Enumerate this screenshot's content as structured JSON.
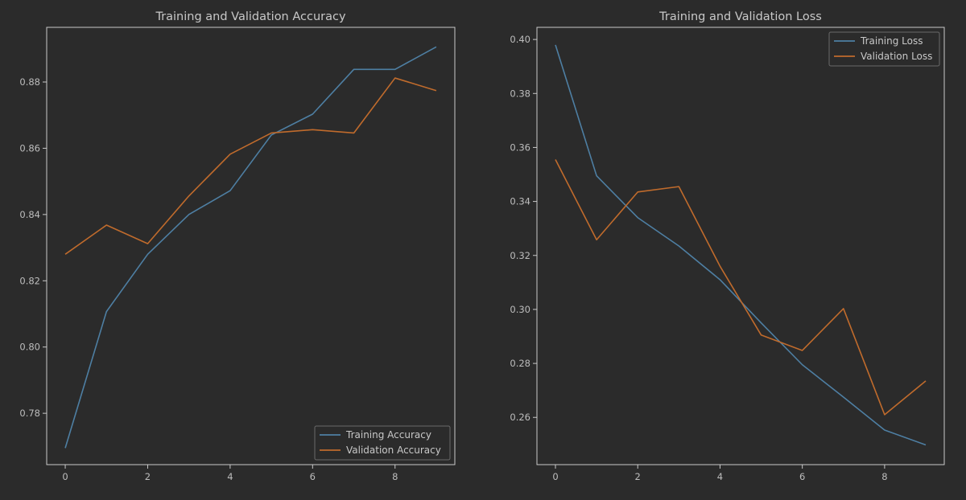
{
  "chart_data": [
    {
      "type": "line",
      "title": "Training and Validation Accuracy",
      "x": [
        0,
        1,
        2,
        3,
        4,
        5,
        6,
        7,
        8,
        9
      ],
      "xlim": [
        -0.45,
        9.45
      ],
      "ylim": [
        0.7645,
        0.8965
      ],
      "xticks": [
        0,
        2,
        4,
        6,
        8
      ],
      "yticks": [
        0.78,
        0.8,
        0.82,
        0.84,
        0.86,
        0.88
      ],
      "ytick_decimals": 2,
      "grid": false,
      "legend_position": "lower-right",
      "series": [
        {
          "name": "Training Accuracy",
          "color": "#4e7fa3",
          "values": [
            0.7695,
            0.8107,
            0.828,
            0.84,
            0.8472,
            0.864,
            0.8703,
            0.8838,
            0.8838,
            0.8906
          ]
        },
        {
          "name": "Validation Accuracy",
          "color": "#c06b2c",
          "values": [
            0.828,
            0.8368,
            0.8312,
            0.8456,
            0.8582,
            0.8646,
            0.8656,
            0.8646,
            0.8812,
            0.8774
          ]
        }
      ]
    },
    {
      "type": "line",
      "title": "Training and Validation Loss",
      "x": [
        0,
        1,
        2,
        3,
        4,
        5,
        6,
        7,
        8,
        9
      ],
      "xlim": [
        -0.45,
        9.45
      ],
      "ylim": [
        0.2425,
        0.4045
      ],
      "xticks": [
        0,
        2,
        4,
        6,
        8
      ],
      "yticks": [
        0.26,
        0.28,
        0.3,
        0.32,
        0.34,
        0.36,
        0.38,
        0.4
      ],
      "ytick_decimals": 2,
      "grid": false,
      "legend_position": "upper-right",
      "series": [
        {
          "name": "Training Loss",
          "color": "#4e7fa3",
          "values": [
            0.398,
            0.3495,
            0.334,
            0.3235,
            0.311,
            0.295,
            0.2795,
            0.2675,
            0.2553,
            0.2498
          ]
        },
        {
          "name": "Validation Loss",
          "color": "#c06b2c",
          "values": [
            0.3555,
            0.3258,
            0.3435,
            0.3455,
            0.316,
            0.2905,
            0.2848,
            0.3003,
            0.261,
            0.2735
          ]
        }
      ]
    }
  ]
}
